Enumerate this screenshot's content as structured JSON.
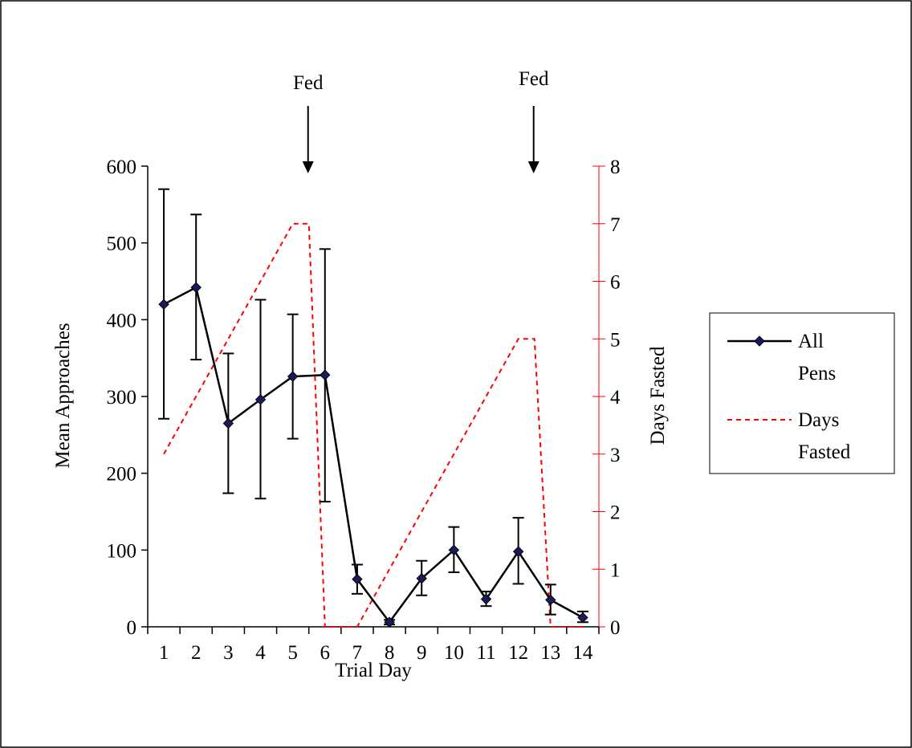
{
  "chart_data": {
    "type": "line",
    "xlabel": "Trial Day",
    "ylabel": "Mean Approaches",
    "y2label": "Days Fasted",
    "categories": [
      "1",
      "2",
      "3",
      "4",
      "5",
      "6",
      "7",
      "8",
      "9",
      "10",
      "11",
      "12",
      "13",
      "14"
    ],
    "ylim": [
      0,
      600
    ],
    "yticks": [
      "0",
      "100",
      "200",
      "300",
      "400",
      "500",
      "600"
    ],
    "y2lim": [
      0,
      8
    ],
    "y2ticks": [
      "0",
      "1",
      "2",
      "3",
      "4",
      "5",
      "6",
      "7",
      "8"
    ],
    "series": [
      {
        "name": "All Pens",
        "axis": "left",
        "color": "#000000",
        "marker_color": "#1a1a5e",
        "values": [
          420,
          442,
          265,
          296,
          326,
          328,
          62,
          6,
          63,
          100,
          36,
          98,
          35,
          12
        ],
        "error_upper": [
          570,
          537,
          356,
          426,
          407,
          492,
          81,
          9,
          86,
          130,
          46,
          142,
          55,
          20
        ],
        "error_lower": [
          271,
          348,
          174,
          167,
          245,
          163,
          43,
          3,
          41,
          71,
          27,
          56,
          16,
          6
        ]
      },
      {
        "name": "Days Fasted",
        "axis": "right",
        "color": "#ff0000",
        "dashed": true,
        "x": [
          1,
          2,
          3,
          4,
          5,
          5.5,
          6,
          7,
          8,
          9,
          10,
          11,
          12,
          12.5,
          13,
          14
        ],
        "values": [
          3,
          4,
          5,
          6,
          7,
          7,
          0,
          0,
          1,
          2,
          3,
          4,
          5,
          5,
          0,
          0
        ]
      }
    ],
    "annotations": [
      {
        "text": "Fed",
        "x": 5.5
      },
      {
        "text": "Fed",
        "x": 12.5
      }
    ],
    "legend": {
      "position": "right",
      "entries": [
        {
          "label_line1": "All",
          "label_line2": "Pens"
        },
        {
          "label_line1": "Days",
          "label_line2": "Fasted"
        }
      ]
    }
  }
}
